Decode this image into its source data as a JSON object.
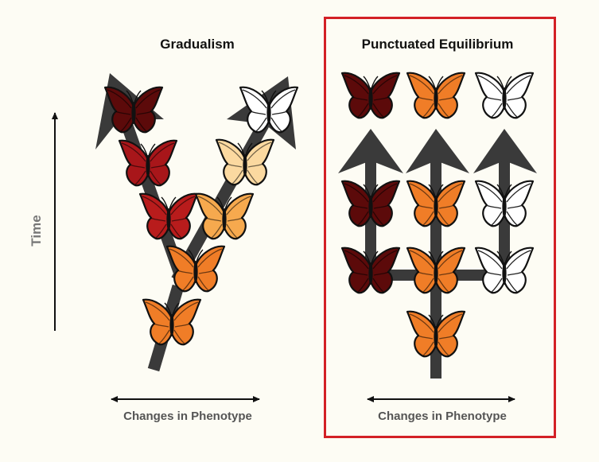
{
  "gradualism": {
    "title": "Gradualism",
    "x_axis_label": "Changes in Phenotype",
    "butterflies": [
      {
        "color": "#5c0a0a"
      },
      {
        "color": "#a8161a"
      },
      {
        "color": "#b81c1c"
      },
      {
        "color": "#f07d27"
      },
      {
        "color": "#f07d27"
      },
      {
        "color": "#f6a94e"
      },
      {
        "color": "#fbd9a0"
      },
      {
        "color": "#ffffff"
      }
    ]
  },
  "punctuated": {
    "title": "Punctuated Equilibrium",
    "x_axis_label": "Changes in Phenotype",
    "frame_color": "#d32026",
    "butterflies": [
      {
        "color": "#5c0a0a"
      },
      {
        "color": "#f07d27"
      },
      {
        "color": "#ffffff"
      },
      {
        "color": "#5c0a0a"
      },
      {
        "color": "#f07d27"
      },
      {
        "color": "#ffffff"
      },
      {
        "color": "#5c0a0a"
      },
      {
        "color": "#f07d27"
      },
      {
        "color": "#ffffff"
      },
      {
        "color": "#f07d27"
      }
    ]
  },
  "y_axis_label": "Time",
  "colors": {
    "branch": "#3a3a3a",
    "outline": "#111111",
    "axis": "#111111"
  }
}
